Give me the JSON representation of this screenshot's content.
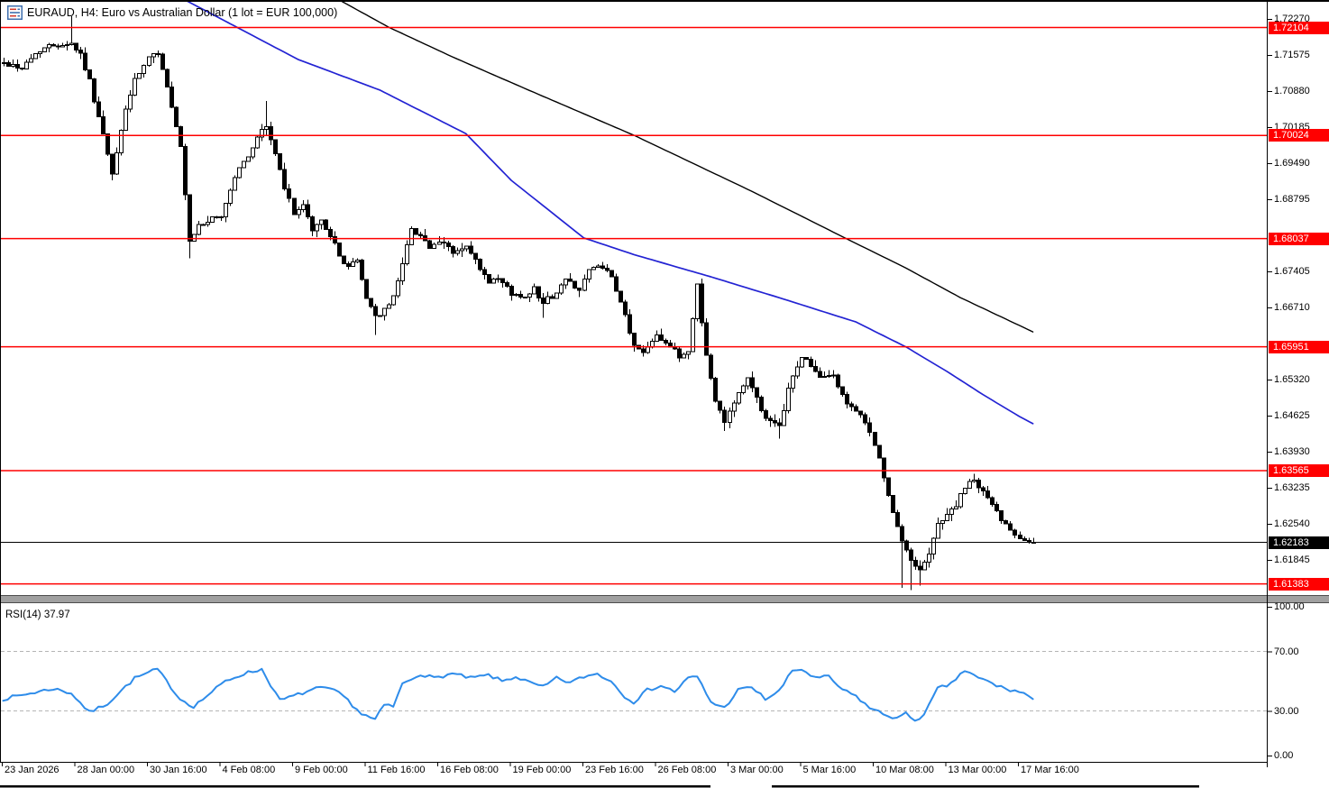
{
  "window": {
    "title": "EURAUD, H4:  Euro vs Australian Dollar (1 lot = EUR 100,000)",
    "title_icon": "chart-icon"
  },
  "colors": {
    "background": "#ffffff",
    "level_line": "#ff0000",
    "level_badge_bg": "#ff0000",
    "current_badge_bg": "#000000",
    "badge_text": "#ffffff",
    "ma_slow": "#000000",
    "ma_fast": "#2323d3",
    "rsi_line": "#2e8cea",
    "candle_up_fill": "#ffffff",
    "candle_down_fill": "#000000",
    "candle_stroke": "#000000",
    "guide_dash": "#b5b5b5",
    "frame": "#000000",
    "separator_fill": "#a0a0a0",
    "separator_edge": "#4d4d4d"
  },
  "chart_data": {
    "type": "candlestick",
    "symbol": "EURAUD",
    "timeframe": "H4",
    "title": "EURAUD, H4: Euro vs Australian Dollar (1 lot = EUR 100,000)",
    "bar_count": 228,
    "price_axis": {
      "ticks": [
        "1.72270",
        "1.71575",
        "1.70880",
        "1.70185",
        "1.69490",
        "1.68795",
        "1.67405",
        "1.66710",
        "1.65320",
        "1.64625",
        "1.63930",
        "1.63235",
        "1.62540",
        "1.61845"
      ],
      "tick_step": 0.00695,
      "range_top": 1.7227,
      "range_bottom": 1.6115
    },
    "time_axis": {
      "labels": [
        "23 Jan 2026",
        "28 Jan 00:00",
        "30 Jan 16:00",
        "4 Feb 08:00",
        "9 Feb 00:00",
        "11 Feb 16:00",
        "16 Feb 08:00",
        "19 Feb 00:00",
        "23 Feb 16:00",
        "26 Feb 08:00",
        "3 Mar 00:00",
        "5 Mar 16:00",
        "10 Mar 08:00",
        "13 Mar 00:00",
        "17 Mar 16:00"
      ]
    },
    "levels": [
      {
        "value": "1.72104"
      },
      {
        "value": "1.70024"
      },
      {
        "value": "1.68037"
      },
      {
        "value": "1.65951"
      },
      {
        "value": "1.63565"
      },
      {
        "value": "1.61383"
      }
    ],
    "current_price": {
      "value": "1.62183"
    },
    "price_path": [
      [
        0,
        1.7142
      ],
      [
        4,
        1.7133
      ],
      [
        8,
        1.7168
      ],
      [
        11,
        1.7177
      ],
      [
        15,
        1.718
      ],
      [
        17,
        1.7159
      ],
      [
        19,
        1.7107
      ],
      [
        22,
        1.7003
      ],
      [
        24,
        1.6925
      ],
      [
        25,
        1.6968
      ],
      [
        27,
        1.7055
      ],
      [
        29,
        1.7107
      ],
      [
        32,
        1.715
      ],
      [
        34,
        1.7163
      ],
      [
        35,
        1.7133
      ],
      [
        37,
        1.7055
      ],
      [
        39,
        1.6977
      ],
      [
        41,
        1.6794
      ],
      [
        43,
        1.6829
      ],
      [
        45,
        1.6838
      ],
      [
        48,
        1.6846
      ],
      [
        50,
        1.6899
      ],
      [
        52,
        1.6942
      ],
      [
        54,
        1.6959
      ],
      [
        56,
        1.7003
      ],
      [
        58,
        1.702
      ],
      [
        60,
        1.6968
      ],
      [
        62,
        1.6899
      ],
      [
        64,
        1.6855
      ],
      [
        66,
        1.6864
      ],
      [
        68,
        1.682
      ],
      [
        70,
        1.6838
      ],
      [
        72,
        1.6812
      ],
      [
        74,
        1.6768
      ],
      [
        76,
        1.6751
      ],
      [
        78,
        1.676
      ],
      [
        80,
        1.669
      ],
      [
        82,
        1.6655
      ],
      [
        84,
        1.6664
      ],
      [
        86,
        1.669
      ],
      [
        88,
        1.676
      ],
      [
        90,
        1.682
      ],
      [
        92,
        1.6812
      ],
      [
        94,
        1.6786
      ],
      [
        97,
        1.6795
      ],
      [
        99,
        1.6777
      ],
      [
        102,
        1.6786
      ],
      [
        104,
        1.676
      ],
      [
        107,
        1.6716
      ],
      [
        109,
        1.6725
      ],
      [
        112,
        1.6699
      ],
      [
        114,
        1.669
      ],
      [
        117,
        1.6707
      ],
      [
        119,
        1.6681
      ],
      [
        122,
        1.6699
      ],
      [
        124,
        1.6725
      ],
      [
        127,
        1.6707
      ],
      [
        129,
        1.6742
      ],
      [
        132,
        1.6751
      ],
      [
        134,
        1.6725
      ],
      [
        137,
        1.6655
      ],
      [
        139,
        1.6595
      ],
      [
        141,
        1.6586
      ],
      [
        144,
        1.6621
      ],
      [
        146,
        1.6603
      ],
      [
        149,
        1.6577
      ],
      [
        151,
        1.6586
      ],
      [
        153,
        1.6716
      ],
      [
        155,
        1.6577
      ],
      [
        157,
        1.649
      ],
      [
        159,
        1.6455
      ],
      [
        162,
        1.6507
      ],
      [
        164,
        1.6533
      ],
      [
        166,
        1.6498
      ],
      [
        168,
        1.6455
      ],
      [
        171,
        1.6438
      ],
      [
        173,
        1.6516
      ],
      [
        176,
        1.6577
      ],
      [
        178,
        1.656
      ],
      [
        180,
        1.6533
      ],
      [
        183,
        1.6542
      ],
      [
        185,
        1.6498
      ],
      [
        188,
        1.6472
      ],
      [
        190,
        1.6446
      ],
      [
        192,
        1.6411
      ],
      [
        194,
        1.6342
      ],
      [
        196,
        1.6272
      ],
      [
        198,
        1.622
      ],
      [
        200,
        1.6185
      ],
      [
        202,
        1.6168
      ],
      [
        204,
        1.6194
      ],
      [
        206,
        1.6255
      ],
      [
        208,
        1.6272
      ],
      [
        210,
        1.629
      ],
      [
        212,
        1.6324
      ],
      [
        214,
        1.6338
      ],
      [
        216,
        1.6316
      ],
      [
        218,
        1.629
      ],
      [
        220,
        1.6264
      ],
      [
        222,
        1.6246
      ],
      [
        224,
        1.6229
      ],
      [
        226,
        1.622
      ],
      [
        227,
        1.62183
      ]
    ],
    "wick_highs": [
      [
        15,
        1.7232
      ],
      [
        58,
        1.7069
      ],
      [
        214,
        1.635
      ]
    ],
    "wick_lows": [
      [
        41,
        1.6766
      ],
      [
        82,
        1.6618
      ],
      [
        119,
        1.6651
      ],
      [
        159,
        1.6433
      ],
      [
        171,
        1.6418
      ],
      [
        198,
        1.6131
      ],
      [
        200,
        1.6126
      ],
      [
        202,
        1.6135
      ]
    ],
    "ma_slow_path": [
      [
        70,
        1.729
      ],
      [
        74,
        1.7264
      ],
      [
        85,
        1.7211
      ],
      [
        99,
        1.7154
      ],
      [
        115,
        1.7093
      ],
      [
        139,
        1.7003
      ],
      [
        165,
        1.6895
      ],
      [
        186,
        1.6803
      ],
      [
        199,
        1.6747
      ],
      [
        211,
        1.669
      ],
      [
        227,
        1.6624
      ]
    ],
    "ma_fast_path": [
      [
        36,
        1.729
      ],
      [
        40,
        1.7264
      ],
      [
        65,
        1.7149
      ],
      [
        83,
        1.709
      ],
      [
        102,
        1.7006
      ],
      [
        112,
        1.6916
      ],
      [
        128,
        1.6805
      ],
      [
        139,
        1.6773
      ],
      [
        156,
        1.673
      ],
      [
        171,
        1.669
      ],
      [
        188,
        1.6643
      ],
      [
        199,
        1.6595
      ],
      [
        208,
        1.6548
      ],
      [
        216,
        1.6503
      ],
      [
        224,
        1.6461
      ],
      [
        227,
        1.6447
      ]
    ],
    "rsi": {
      "label": "RSI(14) 37.97",
      "period": 14,
      "value": 37.97,
      "axis_ticks": [
        {
          "v": 100,
          "label": "100.00"
        },
        {
          "v": 70,
          "label": "70.00"
        },
        {
          "v": 30,
          "label": "30.00"
        },
        {
          "v": 0,
          "label": "0.00"
        }
      ],
      "guides": [
        70,
        30
      ],
      "path": [
        [
          0,
          38
        ],
        [
          11,
          45
        ],
        [
          15,
          42
        ],
        [
          19,
          29
        ],
        [
          23,
          35
        ],
        [
          29,
          52
        ],
        [
          34,
          58
        ],
        [
          39,
          38
        ],
        [
          42,
          33
        ],
        [
          49,
          50
        ],
        [
          53,
          55
        ],
        [
          57,
          58
        ],
        [
          61,
          37
        ],
        [
          65,
          41
        ],
        [
          69,
          45
        ],
        [
          72,
          45
        ],
        [
          75,
          40
        ],
        [
          79,
          28
        ],
        [
          82,
          24
        ],
        [
          84,
          34
        ],
        [
          86,
          33
        ],
        [
          88,
          48
        ],
        [
          92,
          55
        ],
        [
          95,
          52
        ],
        [
          99,
          55
        ],
        [
          103,
          52
        ],
        [
          107,
          54
        ],
        [
          110,
          50
        ],
        [
          113,
          53
        ],
        [
          116,
          49
        ],
        [
          119,
          46
        ],
        [
          122,
          52
        ],
        [
          125,
          49
        ],
        [
          128,
          53
        ],
        [
          131,
          55
        ],
        [
          134,
          50
        ],
        [
          137,
          40
        ],
        [
          139,
          36
        ],
        [
          142,
          44
        ],
        [
          145,
          47
        ],
        [
          148,
          43
        ],
        [
          151,
          52
        ],
        [
          153,
          53
        ],
        [
          156,
          36
        ],
        [
          159,
          32
        ],
        [
          162,
          44
        ],
        [
          165,
          46
        ],
        [
          168,
          38
        ],
        [
          171,
          43
        ],
        [
          174,
          57
        ],
        [
          176,
          58
        ],
        [
          179,
          52
        ],
        [
          182,
          53
        ],
        [
          185,
          44
        ],
        [
          188,
          40
        ],
        [
          191,
          32
        ],
        [
          194,
          28
        ],
        [
          197,
          25
        ],
        [
          199,
          28
        ],
        [
          201,
          24
        ],
        [
          203,
          27
        ],
        [
          206,
          45
        ],
        [
          209,
          48
        ],
        [
          211,
          55
        ],
        [
          212,
          57
        ],
        [
          215,
          52
        ],
        [
          217,
          50
        ],
        [
          219,
          47
        ],
        [
          222,
          44
        ],
        [
          225,
          42
        ],
        [
          227,
          37.97
        ]
      ]
    }
  }
}
